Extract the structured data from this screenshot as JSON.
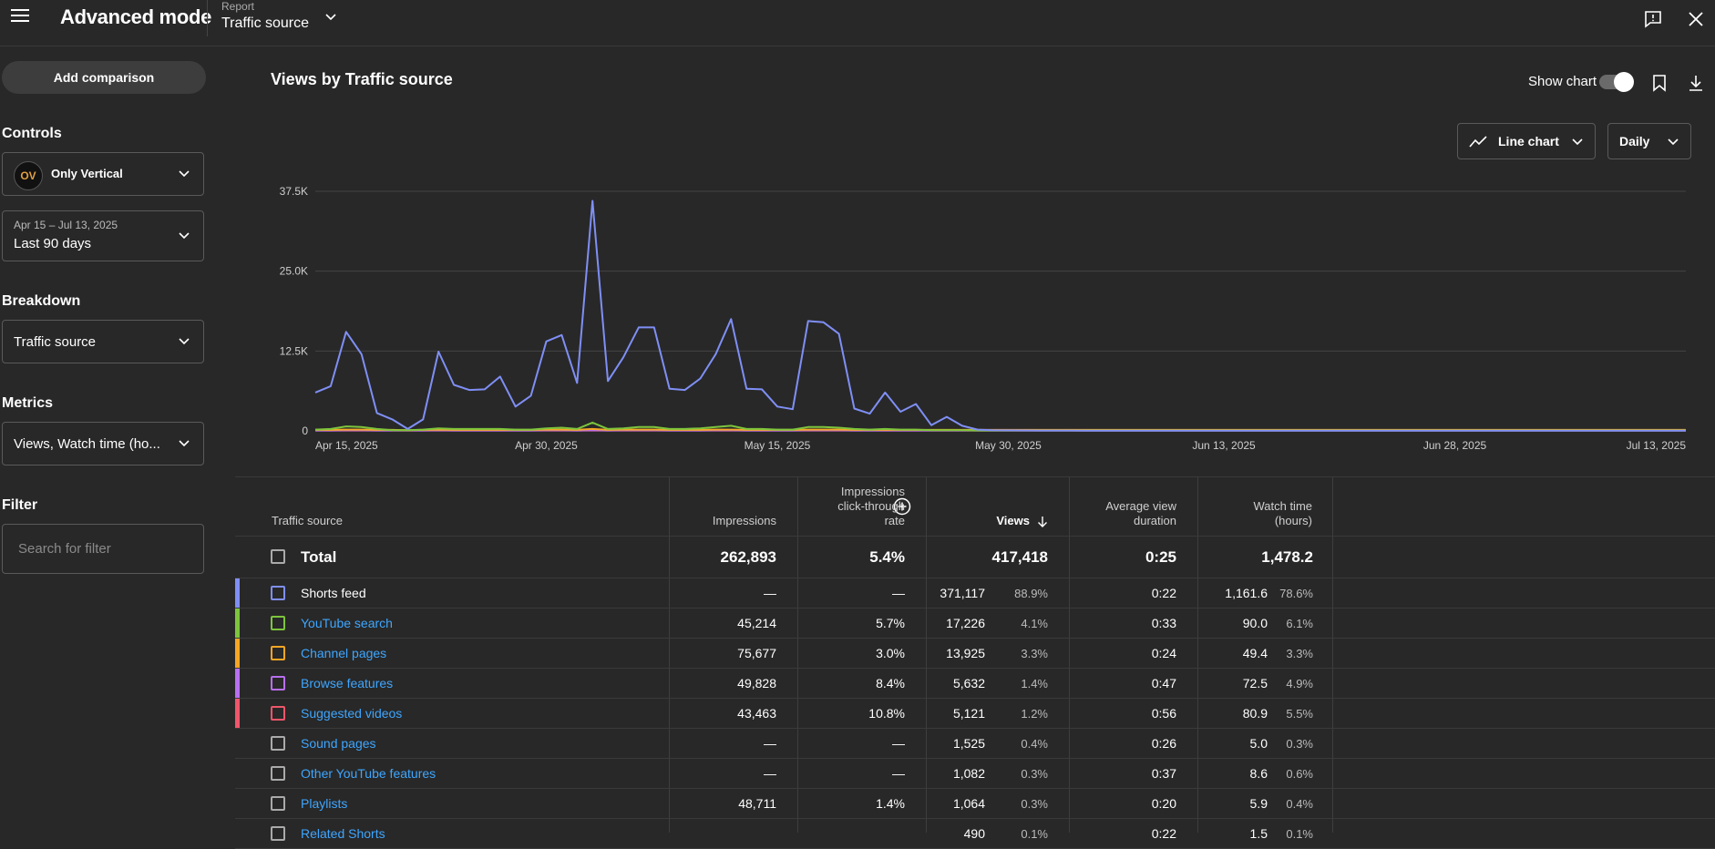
{
  "header": {
    "title": "Advanced mode",
    "report_label": "Report",
    "report_value": "Traffic source"
  },
  "sidebar": {
    "add_comparison": "Add comparison",
    "controls_label": "Controls",
    "channel": {
      "name": "Only Vertical",
      "avatar_text": "OV"
    },
    "date_range": {
      "range": "Apr 15 – Jul 13, 2025",
      "label": "Last 90 days"
    },
    "breakdown_label": "Breakdown",
    "breakdown_value": "Traffic source",
    "metrics_label": "Metrics",
    "metrics_value": "Views, Watch time (ho...",
    "filter_label": "Filter",
    "filter_placeholder": "Search for filter"
  },
  "main": {
    "chart_title": "Views by Traffic source",
    "show_chart_label": "Show chart",
    "show_chart_on": true,
    "chart_type_label": "Line chart",
    "interval_label": "Daily"
  },
  "chart_data": {
    "type": "line",
    "x_start": "2025-04-15",
    "x_tick_labels": [
      "Apr 15, 2025",
      "Apr 30, 2025",
      "May 15, 2025",
      "May 30, 2025",
      "Jun 13, 2025",
      "Jun 28, 2025",
      "Jul 13, 2025"
    ],
    "y_tick_labels": [
      "0",
      "12.5K",
      "25.0K",
      "37.5K"
    ],
    "ylim": [
      0,
      37500
    ],
    "grid": true,
    "series": [
      {
        "name": "Shorts feed",
        "color": "#7f8ff5",
        "values": [
          6000,
          7000,
          15500,
          12000,
          2800,
          1800,
          300,
          1800,
          12400,
          7200,
          6400,
          6500,
          8500,
          3800,
          5500,
          14000,
          15000,
          7500,
          36000,
          7800,
          11500,
          16200,
          16200,
          6600,
          6400,
          8200,
          12000,
          17500,
          6600,
          6500,
          3800,
          3400,
          17200,
          17000,
          15200,
          3500,
          2700,
          6000,
          3000,
          4200,
          900,
          2200,
          800,
          200,
          100,
          80,
          70,
          60,
          50,
          50,
          40,
          40,
          40,
          40,
          40,
          40,
          40,
          40,
          40,
          40,
          40,
          40,
          40,
          40,
          40,
          40,
          40,
          40,
          40,
          40,
          40,
          40,
          40,
          40,
          40,
          40,
          40,
          40,
          40,
          40,
          40,
          40,
          40,
          40,
          40,
          40,
          40,
          40,
          40,
          40
        ]
      },
      {
        "name": "YouTube search",
        "color": "#7cc53c",
        "values": [
          200,
          300,
          700,
          600,
          300,
          100,
          100,
          200,
          400,
          300,
          300,
          300,
          300,
          200,
          200,
          400,
          500,
          300,
          1300,
          300,
          400,
          600,
          600,
          300,
          300,
          400,
          600,
          800,
          300,
          300,
          200,
          200,
          600,
          600,
          500,
          300,
          200,
          300,
          200,
          200,
          100,
          100,
          100,
          50,
          50,
          50,
          50,
          50,
          50,
          50,
          50,
          50,
          50,
          50,
          50,
          50,
          50,
          50,
          50,
          50,
          50,
          50,
          50,
          50,
          50,
          50,
          50,
          50,
          50,
          50,
          50,
          50,
          50,
          50,
          50,
          50,
          50,
          50,
          50,
          50,
          50,
          50,
          50,
          50,
          50,
          50,
          50,
          50,
          50,
          50
        ]
      },
      {
        "name": "Channel pages",
        "color": "#f5a623",
        "values": [
          150,
          150,
          200,
          200,
          150,
          150,
          100,
          150,
          200,
          150,
          150,
          150,
          150,
          150,
          150,
          200,
          200,
          150,
          300,
          150,
          200,
          200,
          200,
          150,
          150,
          150,
          200,
          200,
          150,
          150,
          150,
          150,
          200,
          200,
          200,
          150,
          150,
          150,
          150,
          150,
          150,
          150,
          150,
          150,
          150,
          150,
          150,
          150,
          150,
          150,
          150,
          150,
          150,
          150,
          150,
          150,
          150,
          150,
          150,
          150,
          150,
          150,
          150,
          150,
          150,
          150,
          150,
          150,
          150,
          150,
          150,
          150,
          150,
          150,
          150,
          150,
          150,
          150,
          150,
          150,
          150,
          150,
          150,
          150,
          150,
          150,
          150,
          150,
          150,
          150
        ]
      },
      {
        "name": "Browse features",
        "color": "#b86ff0",
        "values": [
          60,
          60,
          80,
          80,
          60,
          60,
          50,
          60,
          80,
          60,
          60,
          60,
          60,
          60,
          60,
          80,
          80,
          60,
          100,
          60,
          80,
          80,
          80,
          60,
          60,
          60,
          80,
          80,
          60,
          60,
          60,
          60,
          80,
          80,
          80,
          60,
          60,
          60,
          60,
          60,
          60,
          60,
          60,
          60,
          60,
          60,
          60,
          60,
          60,
          60,
          60,
          60,
          60,
          60,
          60,
          60,
          60,
          60,
          60,
          60,
          60,
          60,
          60,
          60,
          60,
          60,
          60,
          60,
          60,
          60,
          60,
          60,
          60,
          60,
          60,
          60,
          60,
          60,
          60,
          60,
          60,
          60,
          60,
          60,
          60,
          60,
          60,
          60,
          60,
          60
        ]
      },
      {
        "name": "Suggested videos",
        "color": "#f0566b",
        "values": [
          60,
          60,
          60,
          60,
          60,
          60,
          60,
          60,
          60,
          60,
          60,
          60,
          60,
          60,
          60,
          60,
          60,
          60,
          60,
          60,
          60,
          60,
          60,
          60,
          60,
          60,
          60,
          60,
          60,
          60,
          60,
          60,
          60,
          60,
          60,
          60,
          60,
          60,
          60,
          60,
          60,
          60,
          60,
          60,
          60,
          60,
          60,
          60,
          60,
          60,
          60,
          60,
          60,
          60,
          60,
          60,
          60,
          60,
          60,
          60,
          60,
          60,
          60,
          60,
          60,
          60,
          60,
          60,
          60,
          60,
          60,
          60,
          60,
          60,
          60,
          60,
          60,
          60,
          60,
          60,
          60,
          60,
          60,
          60,
          60,
          60,
          60,
          60,
          60,
          60
        ]
      }
    ]
  },
  "table": {
    "headers": {
      "source": "Traffic source",
      "impressions": "Impressions",
      "ctr_1": "Impressions",
      "ctr_2": "click-through",
      "ctr_3": "rate",
      "views": "Views",
      "avd_1": "Average view",
      "avd_2": "duration",
      "wt_1": "Watch time",
      "wt_2": "(hours)"
    },
    "total": {
      "label": "Total",
      "impressions": "262,893",
      "ctr": "5.4%",
      "views": "417,418",
      "avd": "0:25",
      "watch": "1,478.2"
    },
    "rows": [
      {
        "name": "Shorts feed",
        "color": "#7f8ff5",
        "impressions": "—",
        "ctr": "—",
        "views": "371,117",
        "views_pct": "88.9%",
        "avd": "0:22",
        "watch": "1,161.6",
        "watch_pct": "78.6%"
      },
      {
        "name": "YouTube search",
        "color": "#7cc53c",
        "impressions": "45,214",
        "ctr": "5.7%",
        "views": "17,226",
        "views_pct": "4.1%",
        "avd": "0:33",
        "watch": "90.0",
        "watch_pct": "6.1%"
      },
      {
        "name": "Channel pages",
        "color": "#f5a623",
        "impressions": "75,677",
        "ctr": "3.0%",
        "views": "13,925",
        "views_pct": "3.3%",
        "avd": "0:24",
        "watch": "49.4",
        "watch_pct": "3.3%"
      },
      {
        "name": "Browse features",
        "color": "#b86ff0",
        "impressions": "49,828",
        "ctr": "8.4%",
        "views": "5,632",
        "views_pct": "1.4%",
        "avd": "0:47",
        "watch": "72.5",
        "watch_pct": "4.9%"
      },
      {
        "name": "Suggested videos",
        "color": "#f0566b",
        "impressions": "43,463",
        "ctr": "10.8%",
        "views": "5,121",
        "views_pct": "1.2%",
        "avd": "0:56",
        "watch": "80.9",
        "watch_pct": "5.5%"
      },
      {
        "name": "Sound pages",
        "color": "",
        "impressions": "—",
        "ctr": "—",
        "views": "1,525",
        "views_pct": "0.4%",
        "avd": "0:26",
        "watch": "5.0",
        "watch_pct": "0.3%"
      },
      {
        "name": "Other YouTube features",
        "color": "",
        "impressions": "—",
        "ctr": "—",
        "views": "1,082",
        "views_pct": "0.3%",
        "avd": "0:37",
        "watch": "8.6",
        "watch_pct": "0.6%"
      },
      {
        "name": "Playlists",
        "color": "",
        "impressions": "48,711",
        "ctr": "1.4%",
        "views": "1,064",
        "views_pct": "0.3%",
        "avd": "0:20",
        "watch": "5.9",
        "watch_pct": "0.4%"
      },
      {
        "name": "Related Shorts",
        "color": "",
        "impressions": "",
        "ctr": "",
        "views": "490",
        "views_pct": "0.1%",
        "avd": "0:22",
        "watch": "1.5",
        "watch_pct": "0.1%"
      }
    ]
  }
}
